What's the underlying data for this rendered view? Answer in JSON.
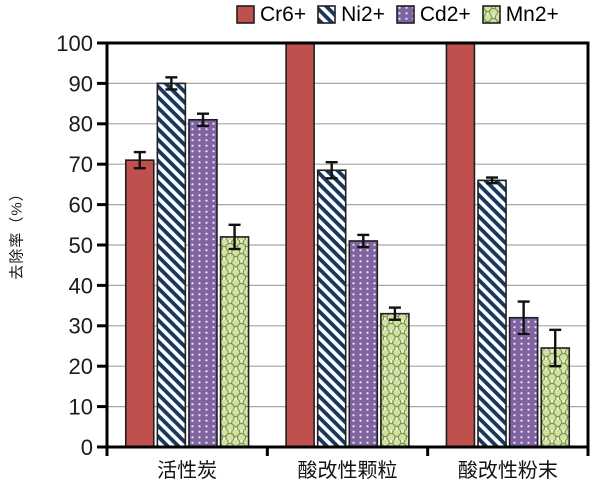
{
  "chart_data": {
    "type": "bar",
    "title": "",
    "ylabel": "去除率（%）",
    "xlabel": "",
    "ylim": [
      0,
      100
    ],
    "ytick_step": 10,
    "grid": true,
    "legend_position": "top",
    "categories": [
      "活性炭",
      "酸改性颗粒",
      "酸改性粉末"
    ],
    "series": [
      {
        "name": "Cr6+",
        "pattern": "solid",
        "color": "#C0504D",
        "values": [
          71,
          100,
          100
        ],
        "errors": [
          2,
          0,
          0
        ]
      },
      {
        "name": "Ni2+",
        "pattern": "diagonal-hatch",
        "color": "#17375E",
        "values": [
          90,
          68.5,
          66
        ],
        "errors": [
          1.5,
          2,
          0.7
        ]
      },
      {
        "name": "Cd2+",
        "pattern": "white-dots",
        "color": "#8064A2",
        "values": [
          81,
          51,
          32
        ],
        "errors": [
          1.5,
          1.5,
          4
        ]
      },
      {
        "name": "Mn2+",
        "pattern": "circles",
        "color": "#9BBB59",
        "values": [
          52,
          33,
          24.5
        ],
        "errors": [
          3,
          1.5,
          4.5
        ]
      }
    ],
    "colors": {
      "axis": "#000000",
      "gridline": "#A6A6A6",
      "error_bar": "#111111",
      "hatch_stripe": "#17375E",
      "dot_fill": "#E8E0F2",
      "circle_outline": "#7C9A44",
      "circle_fill": "#D2E0A8",
      "circle_bg": "#F0F4DF"
    }
  }
}
